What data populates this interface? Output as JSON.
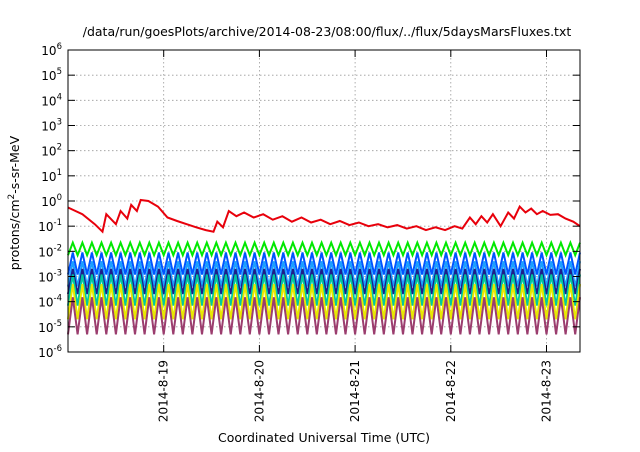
{
  "chart_data": {
    "type": "line",
    "title": "/data/run/goesPlots/archive/2014-08-23/08:00/flux/../flux/5daysMarsFluxes.txt",
    "xlabel": "Coordinated Universal Time (UTC)",
    "ylabel": "protons/cm²-s-sr-MeV",
    "y_scale": "log",
    "ylim": [
      1e-06,
      1000000.0
    ],
    "xlim_days": [
      18.0,
      23.35
    ],
    "x_tick_labels": [
      {
        "day": 19,
        "label": "2014-8-19"
      },
      {
        "day": 20,
        "label": "2014-8-20"
      },
      {
        "day": 21,
        "label": "2014-8-21"
      },
      {
        "day": 22,
        "label": "2014-8-22"
      },
      {
        "day": 23,
        "label": "2014-8-23"
      }
    ],
    "y_ticks": [
      {
        "exp": -6,
        "base": "10",
        "sup": "-6"
      },
      {
        "exp": -5,
        "base": "10",
        "sup": "-5"
      },
      {
        "exp": -4,
        "base": "10",
        "sup": "-4"
      },
      {
        "exp": -3,
        "base": "10",
        "sup": "-3"
      },
      {
        "exp": -2,
        "base": "10",
        "sup": "-2"
      },
      {
        "exp": -1,
        "base": "10",
        "sup": "-1"
      },
      {
        "exp": 0,
        "base": "10",
        "sup": "0"
      },
      {
        "exp": 1,
        "base": "10",
        "sup": "1"
      },
      {
        "exp": 2,
        "base": "10",
        "sup": "2"
      },
      {
        "exp": 3,
        "base": "10",
        "sup": "3"
      },
      {
        "exp": 4,
        "base": "10",
        "sup": "4"
      },
      {
        "exp": 5,
        "base": "10",
        "sup": "5"
      },
      {
        "exp": 6,
        "base": "10",
        "sup": "6"
      }
    ],
    "grid": true,
    "legend": "none",
    "series": [
      {
        "color": "#e8000b",
        "points": [
          [
            18.0,
            0.55
          ],
          [
            18.15,
            0.3
          ],
          [
            18.28,
            0.12
          ],
          [
            18.36,
            0.06
          ],
          [
            18.4,
            0.3
          ],
          [
            18.5,
            0.12
          ],
          [
            18.55,
            0.4
          ],
          [
            18.62,
            0.2
          ],
          [
            18.66,
            0.7
          ],
          [
            18.72,
            0.4
          ],
          [
            18.76,
            1.1
          ],
          [
            18.84,
            1.0
          ],
          [
            18.94,
            0.6
          ],
          [
            19.04,
            0.22
          ],
          [
            19.14,
            0.16
          ],
          [
            19.24,
            0.12
          ],
          [
            19.34,
            0.09
          ],
          [
            19.44,
            0.07
          ],
          [
            19.52,
            0.06
          ],
          [
            19.56,
            0.15
          ],
          [
            19.62,
            0.09
          ],
          [
            19.68,
            0.4
          ],
          [
            19.76,
            0.25
          ],
          [
            19.84,
            0.35
          ],
          [
            19.94,
            0.22
          ],
          [
            20.04,
            0.3
          ],
          [
            20.14,
            0.18
          ],
          [
            20.24,
            0.25
          ],
          [
            20.34,
            0.15
          ],
          [
            20.44,
            0.22
          ],
          [
            20.54,
            0.14
          ],
          [
            20.64,
            0.18
          ],
          [
            20.74,
            0.12
          ],
          [
            20.84,
            0.16
          ],
          [
            20.94,
            0.11
          ],
          [
            21.04,
            0.14
          ],
          [
            21.14,
            0.1
          ],
          [
            21.24,
            0.12
          ],
          [
            21.34,
            0.09
          ],
          [
            21.44,
            0.11
          ],
          [
            21.54,
            0.08
          ],
          [
            21.64,
            0.1
          ],
          [
            21.74,
            0.07
          ],
          [
            21.84,
            0.09
          ],
          [
            21.94,
            0.07
          ],
          [
            22.04,
            0.1
          ],
          [
            22.12,
            0.08
          ],
          [
            22.2,
            0.22
          ],
          [
            22.26,
            0.12
          ],
          [
            22.32,
            0.25
          ],
          [
            22.38,
            0.14
          ],
          [
            22.44,
            0.3
          ],
          [
            22.52,
            0.1
          ],
          [
            22.6,
            0.35
          ],
          [
            22.66,
            0.2
          ],
          [
            22.72,
            0.6
          ],
          [
            22.78,
            0.35
          ],
          [
            22.84,
            0.5
          ],
          [
            22.9,
            0.3
          ],
          [
            22.96,
            0.4
          ],
          [
            23.04,
            0.28
          ],
          [
            23.12,
            0.3
          ],
          [
            23.2,
            0.2
          ],
          [
            23.28,
            0.15
          ],
          [
            23.35,
            0.1
          ]
        ]
      },
      {
        "color": "#00e800",
        "sawtooth": {
          "peak": 0.022,
          "trough": 0.007,
          "period": 0.1
        },
        "x": [
          18.0,
          23.35
        ]
      },
      {
        "color": "#0055ff",
        "sawtooth": {
          "peak": 0.009,
          "trough": 0.0012,
          "period": 0.1
        },
        "x": [
          18.0,
          23.35
        ]
      },
      {
        "color": "#1a9fff",
        "sawtooth": {
          "peak": 0.004,
          "trough": 0.0004,
          "period": 0.1
        },
        "x": [
          18.0,
          23.35
        ]
      },
      {
        "color": "#1e1e8c",
        "sawtooth": {
          "peak": 0.002,
          "trough": 0.0002,
          "period": 0.1
        },
        "x": [
          18.0,
          23.35
        ]
      },
      {
        "color": "#00c8a0",
        "sawtooth": {
          "peak": 0.0012,
          "trough": 7e-05,
          "period": 0.1
        },
        "x": [
          18.0,
          23.35
        ]
      },
      {
        "color": "#e8e800",
        "sawtooth": {
          "peak": 0.0005,
          "trough": 2e-05,
          "period": 0.1
        },
        "x": [
          18.0,
          23.35
        ]
      },
      {
        "color": "#9b3d6e",
        "sawtooth": {
          "peak": 0.00015,
          "trough": 5e-06,
          "period": 0.1
        },
        "x": [
          18.0,
          23.35
        ]
      }
    ]
  }
}
